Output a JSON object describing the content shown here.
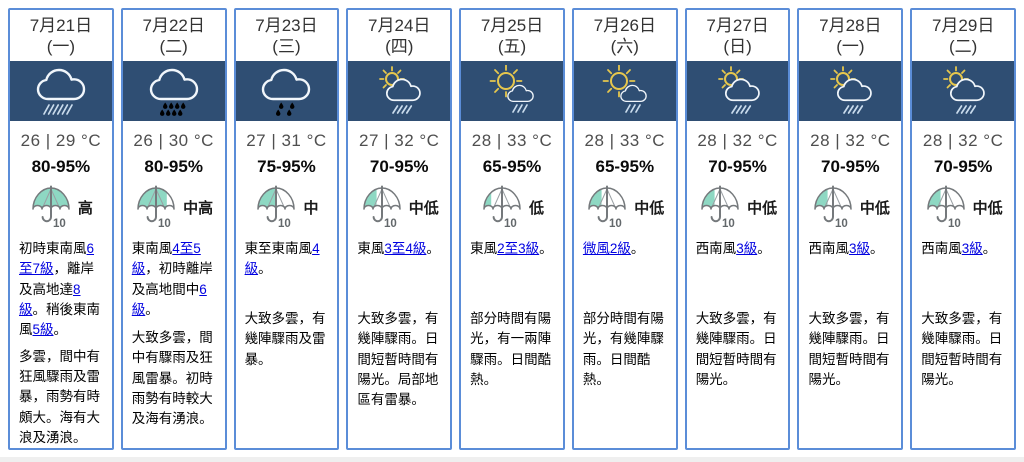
{
  "colors": {
    "card_border": "#5b8dd8",
    "icon_band_background": "#2f4e73",
    "umbrella_fill": "#8ed8c3",
    "link": "#0000e0"
  },
  "umbrella_scale_number": "10",
  "days": [
    {
      "date": "7月21日",
      "weekday": "(一)",
      "icon": "heavy-rain",
      "temp_display": "26 | 29 °C",
      "humidity": "80-95%",
      "psr_level": "高",
      "wind_segments": [
        {
          "t": "初時東南風",
          "link": false
        },
        {
          "t": "6至7級",
          "link": true
        },
        {
          "t": "，離岸及高地達",
          "link": false
        },
        {
          "t": "8級",
          "link": true
        },
        {
          "t": "。稍後東南風",
          "link": false
        },
        {
          "t": "5級",
          "link": true
        },
        {
          "t": "。",
          "link": false
        }
      ],
      "forecast": "多雲，間中有狂風驟雨及雷暴，雨勢有時頗大。海有大浪及湧浪。"
    },
    {
      "date": "7月22日",
      "weekday": "(二)",
      "icon": "rain",
      "temp_display": "26 | 30 °C",
      "humidity": "80-95%",
      "psr_level": "中高",
      "wind_segments": [
        {
          "t": "東南風",
          "link": false
        },
        {
          "t": "4至5級",
          "link": true
        },
        {
          "t": "，初時離岸及高地間中",
          "link": false
        },
        {
          "t": "6級",
          "link": true
        },
        {
          "t": "。",
          "link": false
        }
      ],
      "forecast": "大致多雲，間中有驟雨及狂風雷暴。初時雨勢有時較大及海有湧浪。"
    },
    {
      "date": "7月23日",
      "weekday": "(三)",
      "icon": "light-rain",
      "temp_display": "27 | 31 °C",
      "humidity": "75-95%",
      "psr_level": "中",
      "wind_segments": [
        {
          "t": "東至東南風",
          "link": false
        },
        {
          "t": "4級",
          "link": true
        },
        {
          "t": "。",
          "link": false
        }
      ],
      "forecast": "大致多雲，有幾陣驟雨及雷暴。"
    },
    {
      "date": "7月24日",
      "weekday": "(四)",
      "icon": "cloud-sun-rain",
      "temp_display": "27 | 32 °C",
      "humidity": "70-95%",
      "psr_level": "中低",
      "wind_segments": [
        {
          "t": "東風",
          "link": false
        },
        {
          "t": "3至4級",
          "link": true
        },
        {
          "t": "。",
          "link": false
        }
      ],
      "forecast": "大致多雲，有幾陣驟雨。日間短暫時間有陽光。局部地區有雷暴。"
    },
    {
      "date": "7月25日",
      "weekday": "(五)",
      "icon": "sun-cloud-shower",
      "temp_display": "28 | 33 °C",
      "humidity": "65-95%",
      "psr_level": "低",
      "wind_segments": [
        {
          "t": "東風",
          "link": false
        },
        {
          "t": "2至3級",
          "link": true
        },
        {
          "t": "。",
          "link": false
        }
      ],
      "forecast": "部分時間有陽光，有一兩陣驟雨。日間酷熱。"
    },
    {
      "date": "7月26日",
      "weekday": "(六)",
      "icon": "sun-cloud-shower",
      "temp_display": "28 | 33 °C",
      "humidity": "65-95%",
      "psr_level": "中低",
      "wind_segments": [
        {
          "t": "微風2級",
          "link": true
        },
        {
          "t": "。",
          "link": false
        }
      ],
      "forecast": "部分時間有陽光，有幾陣驟雨。日間酷熱。"
    },
    {
      "date": "7月27日",
      "weekday": "(日)",
      "icon": "cloud-sun-rain",
      "temp_display": "28 | 32 °C",
      "humidity": "70-95%",
      "psr_level": "中低",
      "wind_segments": [
        {
          "t": "西南風",
          "link": false
        },
        {
          "t": "3級",
          "link": true
        },
        {
          "t": "。",
          "link": false
        }
      ],
      "forecast": "大致多雲，有幾陣驟雨。日間短暫時間有陽光。"
    },
    {
      "date": "7月28日",
      "weekday": "(一)",
      "icon": "cloud-sun-rain",
      "temp_display": "28 | 32 °C",
      "humidity": "70-95%",
      "psr_level": "中低",
      "wind_segments": [
        {
          "t": "西南風",
          "link": false
        },
        {
          "t": "3級",
          "link": true
        },
        {
          "t": "。",
          "link": false
        }
      ],
      "forecast": "大致多雲，有幾陣驟雨。日間短暫時間有陽光。"
    },
    {
      "date": "7月29日",
      "weekday": "(二)",
      "icon": "cloud-sun-rain",
      "temp_display": "28 | 32 °C",
      "humidity": "70-95%",
      "psr_level": "中低",
      "wind_segments": [
        {
          "t": "西南風",
          "link": false
        },
        {
          "t": "3級",
          "link": true
        },
        {
          "t": "。",
          "link": false
        }
      ],
      "forecast": "大致多雲，有幾陣驟雨。日間短暫時間有陽光。"
    }
  ]
}
